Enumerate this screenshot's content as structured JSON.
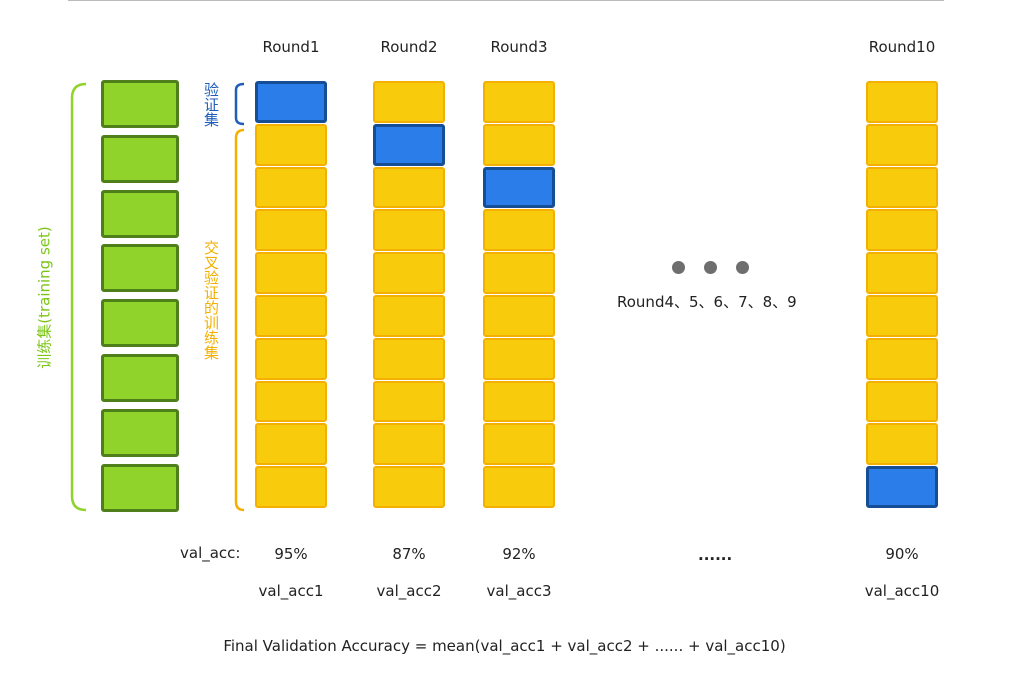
{
  "rounds": [
    {
      "label": "Round1",
      "val_index": 0,
      "acc": "95%",
      "val_name": "val_acc1"
    },
    {
      "label": "Round2",
      "val_index": 1,
      "acc": "87%",
      "val_name": "val_acc2"
    },
    {
      "label": "Round3",
      "val_index": 2,
      "acc": "92%",
      "val_name": "val_acc3"
    },
    {
      "label": "Round10",
      "val_index": 9,
      "acc": "90%",
      "val_name": "val_acc10"
    }
  ],
  "labels": {
    "training_set": "训练集(training set)",
    "validation": "验证集",
    "cv_training": "交叉验证的训练集",
    "val_acc_prefix": "val_acc:",
    "ellipsis_rounds": "Round4、5、6、7、8、9",
    "ellipsis_acc": "......",
    "final_formula": "Final Validation Accuracy = mean(val_acc1 + val_acc2 + ...... + val_acc10)"
  },
  "colors": {
    "training": "#8fd32b",
    "training_border": "#4f7f1a",
    "fold": "#f8cc0c",
    "validation": "#2b7de9",
    "training_label": "#7cc518",
    "validation_label": "#1f5fb8",
    "cv_label": "#f3b000"
  },
  "training_blocks": 8,
  "folds_per_round": 10
}
